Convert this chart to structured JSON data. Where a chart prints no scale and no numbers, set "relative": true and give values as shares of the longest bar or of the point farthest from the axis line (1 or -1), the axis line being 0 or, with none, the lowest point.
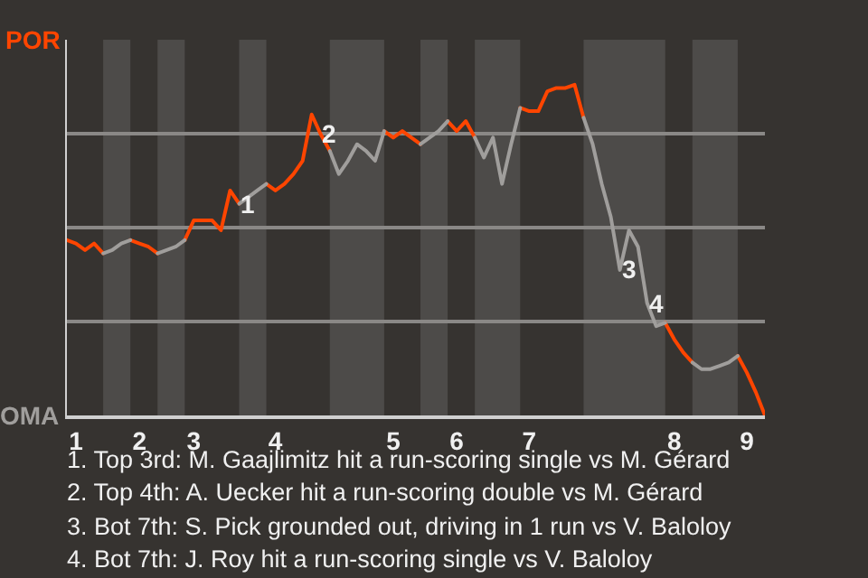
{
  "chart_data": {
    "type": "line",
    "relative": true,
    "categories": [
      null,
      "1",
      null,
      null,
      null,
      null,
      null,
      null,
      "2",
      null,
      null,
      null,
      null,
      null,
      "3",
      null,
      null,
      null,
      null,
      null,
      null,
      null,
      null,
      "4",
      null,
      null,
      null,
      null,
      null,
      null,
      null,
      null,
      null,
      null,
      null,
      null,
      "5",
      null,
      null,
      null,
      null,
      null,
      null,
      "6",
      null,
      null,
      null,
      null,
      null,
      null,
      null,
      "7",
      null,
      null,
      null,
      null,
      null,
      null,
      null,
      null,
      null,
      null,
      null,
      null,
      null,
      null,
      null,
      "8",
      null,
      null,
      null,
      null,
      null,
      null,
      null,
      "9",
      null,
      null
    ],
    "series": [
      {
        "name": "POR",
        "color": "#ff4500",
        "values": [
          0.53,
          0.52,
          0.5,
          0.52,
          0.49,
          null,
          null,
          0.53,
          0.52,
          0.51,
          0.49,
          null,
          null,
          0.53,
          0.59,
          0.59,
          0.59,
          0.56,
          0.68,
          0.64,
          null,
          null,
          0.7,
          0.68,
          0.7,
          0.73,
          0.77,
          0.91,
          0.85,
          0.8,
          null,
          null,
          null,
          null,
          null,
          0.86,
          0.84,
          0.86,
          0.84,
          0.82,
          null,
          null,
          0.89,
          0.86,
          0.89,
          0.84,
          null,
          null,
          null,
          null,
          0.93,
          0.92,
          0.92,
          0.98,
          0.99,
          0.99,
          1,
          0.9,
          null,
          null,
          null,
          null,
          null,
          null,
          null,
          null,
          0.28,
          0.23,
          0.19,
          0.16,
          null,
          null,
          null,
          null,
          0.18,
          0.13,
          0.07,
          0
        ]
      },
      {
        "name": "OMA",
        "color": "#a09e9c",
        "values": [
          null,
          null,
          null,
          null,
          0.49,
          0.5,
          0.52,
          0.53,
          null,
          null,
          0.49,
          0.5,
          0.51,
          0.53,
          null,
          null,
          null,
          null,
          null,
          0.64,
          0.66,
          0.68,
          0.7,
          null,
          null,
          null,
          null,
          null,
          null,
          0.8,
          0.73,
          0.77,
          0.82,
          0.8,
          0.77,
          0.86,
          null,
          null,
          null,
          0.82,
          0.84,
          0.86,
          0.89,
          null,
          null,
          0.84,
          0.78,
          0.84,
          0.7,
          0.82,
          0.93,
          null,
          null,
          null,
          null,
          null,
          null,
          0.9,
          0.82,
          0.7,
          0.6,
          0.44,
          0.56,
          0.51,
          0.34,
          0.27,
          0.28,
          null,
          null,
          0.16,
          0.14,
          0.14,
          0.15,
          0.16,
          0.18,
          null,
          null,
          null
        ]
      }
    ],
    "grid": "y",
    "legend": false,
    "marker": "none",
    "line_style": "solid",
    "annotations": [
      {
        "text": "1",
        "y": 0.64
      },
      {
        "text": "2",
        "y": 0.85
      },
      {
        "text": "3",
        "y": 0.44
      },
      {
        "text": "4",
        "y": 0.34
      },
      "1. Top 3rd: M. Gaajlimitz hit a run-scoring single vs M. Gérard",
      "2. Top 4th: A. Uecker hit a run-scoring double vs M. Gérard",
      "3. Bot 7th: S. Pick grounded out, driving in 1 run vs V. Baloloy",
      "4. Bot 7th: J. Roy hit a run-scoring single vs V. Baloloy"
    ]
  }
}
